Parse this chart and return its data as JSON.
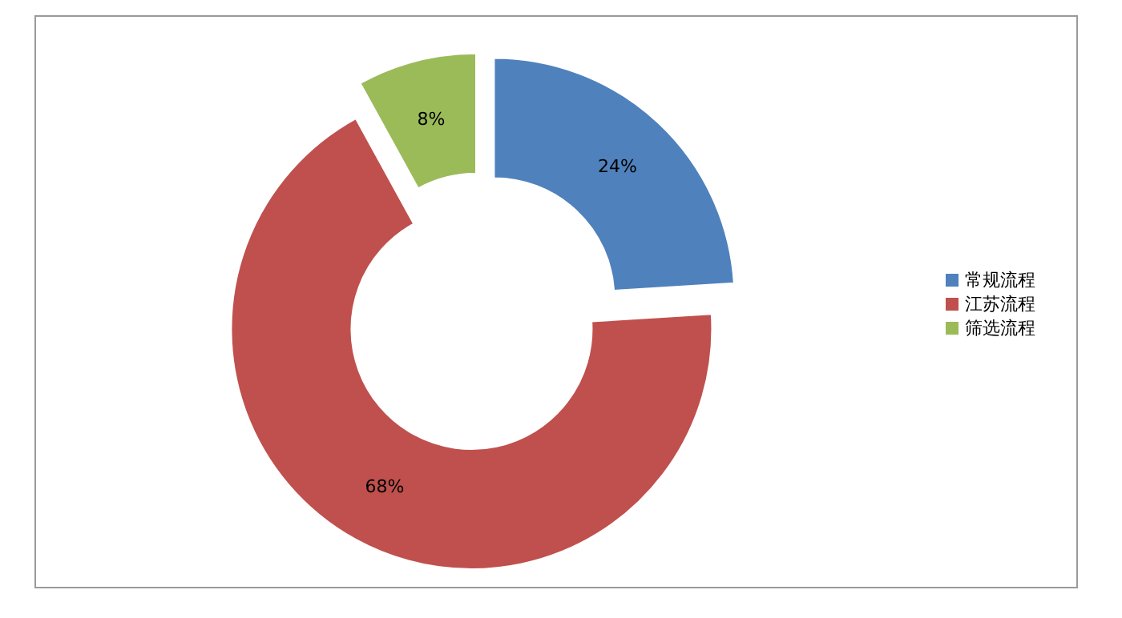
{
  "chart_data": {
    "type": "donut",
    "categories": [
      "常规流程",
      "江苏流程",
      "筛选流程"
    ],
    "values": [
      24,
      68,
      8
    ],
    "colors": [
      "#4f81bd",
      "#c0504d",
      "#9bbb59"
    ],
    "value_labels": [
      "24%",
      "68%",
      "8%"
    ],
    "legend": "right"
  }
}
